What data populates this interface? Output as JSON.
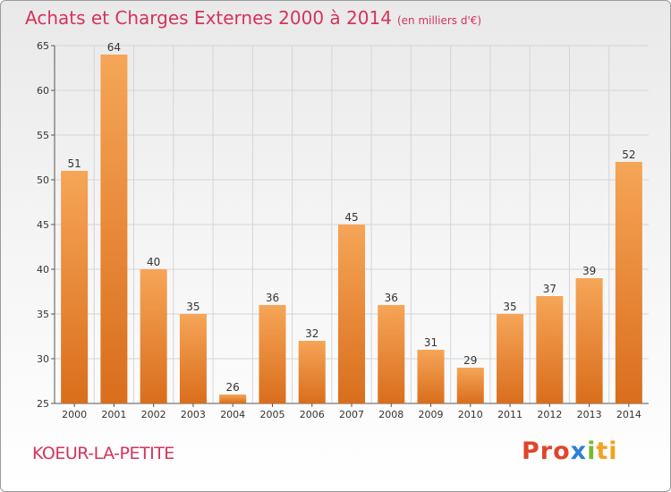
{
  "header": {
    "title": "Achats et Charges Externes 2000 à 2014",
    "unit": "(en milliers d'€)"
  },
  "footer": {
    "place": "KOEUR-LA-PETITE",
    "logo_parts": [
      "Pro",
      "x",
      "i",
      "ti"
    ]
  },
  "colors": {
    "title": "#d3345a",
    "bar_top": "#f6a557",
    "bar_bottom": "#d96e1c",
    "grid": "#d5d5d5"
  },
  "chart_data": {
    "type": "bar",
    "categories": [
      "2000",
      "2001",
      "2002",
      "2003",
      "2004",
      "2005",
      "2006",
      "2007",
      "2008",
      "2009",
      "2010",
      "2011",
      "2012",
      "2013",
      "2014"
    ],
    "values": [
      51,
      64,
      40,
      35,
      26,
      36,
      32,
      45,
      36,
      31,
      29,
      35,
      37,
      39,
      52
    ],
    "ylim": [
      25,
      65
    ],
    "yticks": [
      25,
      30,
      35,
      40,
      45,
      50,
      55,
      60,
      65
    ],
    "grid": true
  }
}
